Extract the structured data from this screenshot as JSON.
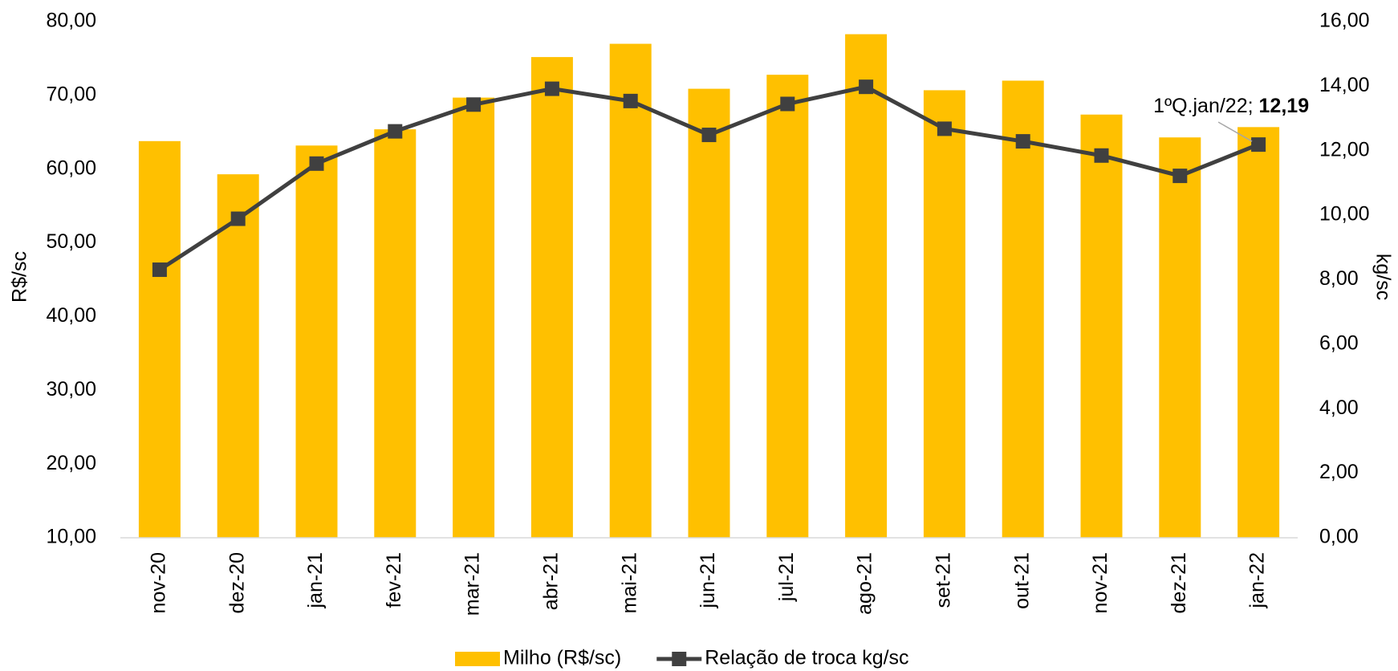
{
  "chart_data": {
    "type": "bar-line",
    "categories": [
      "nov-20",
      "dez-20",
      "jan-21",
      "fev-21",
      "mar-21",
      "abr-21",
      "mai-21",
      "jun-21",
      "jul-21",
      "ago-21",
      "set-21",
      "out-21",
      "nov-21",
      "dez-21",
      "jan-22"
    ],
    "series": [
      {
        "name": "Milho (R$/sc)",
        "type": "bar",
        "color": "#ffc000",
        "values": [
          63.8,
          59.3,
          63.2,
          65.4,
          69.7,
          75.2,
          77.0,
          70.9,
          72.8,
          78.3,
          70.7,
          72.0,
          67.4,
          64.3,
          65.7
        ]
      },
      {
        "name": "Relação de troca kg/sc",
        "type": "line",
        "axis": "y2",
        "color": "#404040",
        "values": [
          8.31,
          9.89,
          11.6,
          12.6,
          13.43,
          13.92,
          13.54,
          12.49,
          13.45,
          13.98,
          12.68,
          12.29,
          11.85,
          11.22,
          12.19
        ],
        "value_labels": [
          null,
          null,
          null,
          null,
          null,
          null,
          null,
          null,
          null,
          null,
          null,
          null,
          null,
          null,
          "12,19"
        ]
      }
    ],
    "annotation": "1ºQ.jan/22;",
    "ylabel": "R$/sc",
    "y2label": "kg/sc",
    "ylim": [
      10,
      80
    ],
    "yticks": [
      {
        "value": 10,
        "label": "10,00"
      },
      {
        "value": 20,
        "label": "20,00"
      },
      {
        "value": 30,
        "label": "30,00"
      },
      {
        "value": 40,
        "label": "40,00"
      },
      {
        "value": 50,
        "label": "50,00"
      },
      {
        "value": 60,
        "label": "60,00"
      },
      {
        "value": 70,
        "label": "70,00"
      },
      {
        "value": 80,
        "label": "80,00"
      }
    ],
    "y2lim": [
      0,
      16
    ],
    "y2ticks": [
      {
        "value": 0,
        "label": "0,00"
      },
      {
        "value": 2,
        "label": "2,00"
      },
      {
        "value": 4,
        "label": "4,00"
      },
      {
        "value": 6,
        "label": "6,00"
      },
      {
        "value": 8,
        "label": "8,00"
      },
      {
        "value": 10,
        "label": "10,00"
      },
      {
        "value": 12,
        "label": "12,00"
      },
      {
        "value": 14,
        "label": "14,00"
      },
      {
        "value": 16,
        "label": "16,00"
      }
    ],
    "legend": "bottom"
  }
}
